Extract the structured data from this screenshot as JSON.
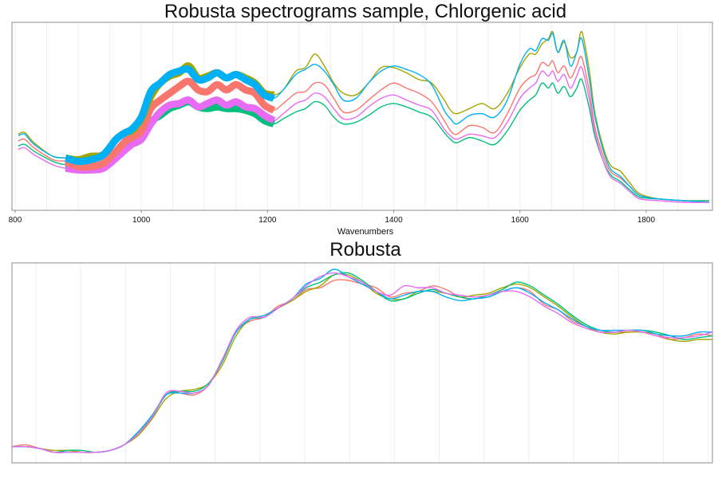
{
  "chart_data": [
    {
      "type": "line",
      "title": "Robusta spectrograms sample, Chlorgenic acid",
      "xlabel": "Wavenumbers",
      "ylabel": "",
      "xlim": [
        795,
        1905
      ],
      "ylim": [
        0,
        1
      ],
      "x_ticks": [
        "800",
        "1000",
        "1200",
        "1400",
        "1600",
        "1800"
      ],
      "highlight_range": [
        880,
        1215
      ],
      "grid": true,
      "legend": "none",
      "x": [
        805,
        815,
        830,
        860,
        880,
        900,
        920,
        940,
        960,
        975,
        985,
        1000,
        1015,
        1030,
        1045,
        1060,
        1075,
        1090,
        1105,
        1120,
        1135,
        1150,
        1165,
        1180,
        1195,
        1210,
        1225,
        1245,
        1260,
        1275,
        1290,
        1305,
        1320,
        1340,
        1360,
        1380,
        1400,
        1420,
        1440,
        1460,
        1480,
        1490,
        1500,
        1520,
        1540,
        1560,
        1580,
        1600,
        1615,
        1625,
        1635,
        1645,
        1652,
        1660,
        1670,
        1680,
        1690,
        1698,
        1710,
        1720,
        1740,
        1760,
        1775,
        1790,
        1820,
        1860,
        1900
      ],
      "series": [
        {
          "color": "#F8766D",
          "values": [
            0.36,
            0.37,
            0.32,
            0.25,
            0.24,
            0.21,
            0.21,
            0.23,
            0.3,
            0.36,
            0.38,
            0.42,
            0.55,
            0.6,
            0.64,
            0.68,
            0.71,
            0.66,
            0.65,
            0.69,
            0.66,
            0.69,
            0.66,
            0.64,
            0.57,
            0.54,
            0.58,
            0.64,
            0.65,
            0.7,
            0.69,
            0.61,
            0.53,
            0.54,
            0.6,
            0.66,
            0.7,
            0.67,
            0.64,
            0.59,
            0.48,
            0.42,
            0.4,
            0.45,
            0.44,
            0.41,
            0.52,
            0.67,
            0.73,
            0.75,
            0.82,
            0.8,
            0.83,
            0.76,
            0.8,
            0.73,
            0.8,
            0.85,
            0.65,
            0.42,
            0.2,
            0.14,
            0.09,
            0.04,
            0.02,
            0.01,
            0.01
          ]
        },
        {
          "color": "#A3A500",
          "values": [
            0.4,
            0.41,
            0.35,
            0.27,
            0.26,
            0.25,
            0.27,
            0.28,
            0.37,
            0.41,
            0.42,
            0.49,
            0.62,
            0.7,
            0.74,
            0.76,
            0.8,
            0.73,
            0.74,
            0.76,
            0.73,
            0.75,
            0.73,
            0.7,
            0.64,
            0.63,
            0.66,
            0.77,
            0.79,
            0.87,
            0.8,
            0.7,
            0.64,
            0.63,
            0.7,
            0.79,
            0.79,
            0.76,
            0.72,
            0.7,
            0.6,
            0.54,
            0.52,
            0.55,
            0.58,
            0.55,
            0.64,
            0.79,
            0.87,
            0.87,
            0.93,
            0.96,
            1.0,
            0.88,
            0.94,
            0.85,
            0.88,
            1.0,
            0.77,
            0.5,
            0.24,
            0.18,
            0.11,
            0.05,
            0.02,
            0.01,
            0.0
          ]
        },
        {
          "color": "#00BF7D",
          "values": [
            0.33,
            0.34,
            0.3,
            0.24,
            0.22,
            0.21,
            0.2,
            0.21,
            0.27,
            0.32,
            0.35,
            0.37,
            0.47,
            0.51,
            0.55,
            0.57,
            0.59,
            0.56,
            0.55,
            0.56,
            0.55,
            0.55,
            0.54,
            0.52,
            0.48,
            0.46,
            0.49,
            0.53,
            0.55,
            0.59,
            0.57,
            0.5,
            0.46,
            0.47,
            0.51,
            0.56,
            0.58,
            0.56,
            0.53,
            0.5,
            0.41,
            0.37,
            0.35,
            0.38,
            0.36,
            0.34,
            0.42,
            0.54,
            0.6,
            0.63,
            0.7,
            0.67,
            0.7,
            0.64,
            0.68,
            0.62,
            0.67,
            0.72,
            0.55,
            0.37,
            0.18,
            0.12,
            0.07,
            0.03,
            0.02,
            0.01,
            0.01
          ]
        },
        {
          "color": "#00B0F6",
          "values": [
            0.39,
            0.4,
            0.34,
            0.27,
            0.26,
            0.24,
            0.25,
            0.28,
            0.37,
            0.41,
            0.43,
            0.5,
            0.65,
            0.7,
            0.75,
            0.77,
            0.78,
            0.72,
            0.73,
            0.76,
            0.73,
            0.75,
            0.72,
            0.69,
            0.63,
            0.61,
            0.66,
            0.75,
            0.78,
            0.81,
            0.77,
            0.69,
            0.6,
            0.61,
            0.7,
            0.77,
            0.8,
            0.78,
            0.75,
            0.69,
            0.54,
            0.49,
            0.46,
            0.51,
            0.52,
            0.5,
            0.6,
            0.81,
            0.9,
            0.89,
            0.96,
            0.95,
            0.99,
            0.88,
            0.95,
            0.8,
            0.88,
            0.96,
            0.72,
            0.48,
            0.22,
            0.15,
            0.09,
            0.04,
            0.02,
            0.01,
            0.0
          ]
        },
        {
          "color": "#E76BF3",
          "values": [
            0.31,
            0.32,
            0.28,
            0.22,
            0.2,
            0.19,
            0.19,
            0.2,
            0.26,
            0.31,
            0.34,
            0.37,
            0.46,
            0.53,
            0.57,
            0.58,
            0.6,
            0.56,
            0.58,
            0.6,
            0.57,
            0.59,
            0.56,
            0.55,
            0.51,
            0.48,
            0.52,
            0.58,
            0.6,
            0.64,
            0.62,
            0.55,
            0.49,
            0.5,
            0.56,
            0.61,
            0.63,
            0.6,
            0.57,
            0.54,
            0.43,
            0.39,
            0.37,
            0.4,
            0.39,
            0.38,
            0.47,
            0.61,
            0.67,
            0.7,
            0.77,
            0.74,
            0.77,
            0.71,
            0.75,
            0.67,
            0.74,
            0.79,
            0.6,
            0.39,
            0.17,
            0.11,
            0.06,
            0.02,
            0.01,
            0.0,
            0.0
          ]
        }
      ]
    },
    {
      "type": "line",
      "title": "Robusta",
      "xlabel": "",
      "ylabel": "",
      "xlim": [
        0,
        100
      ],
      "ylim": [
        0,
        1
      ],
      "grid": true,
      "legend": "none",
      "x": [
        0,
        2,
        4,
        6,
        8,
        10,
        12,
        14,
        16,
        18,
        20,
        22,
        24,
        26,
        28,
        30,
        32,
        34,
        36,
        38,
        40,
        42,
        44,
        46,
        48,
        50,
        52,
        54,
        56,
        58,
        60,
        62,
        64,
        66,
        68,
        70,
        72,
        74,
        76,
        78,
        80,
        82,
        84,
        86,
        88,
        90,
        92,
        94,
        96,
        98,
        100
      ],
      "series": [
        {
          "color": "#F8766D",
          "values": [
            0.04,
            0.05,
            0.03,
            0.01,
            0.02,
            0.01,
            0.01,
            0.02,
            0.05,
            0.12,
            0.2,
            0.33,
            0.33,
            0.32,
            0.37,
            0.5,
            0.66,
            0.72,
            0.74,
            0.8,
            0.83,
            0.89,
            0.9,
            0.94,
            0.94,
            0.92,
            0.9,
            0.85,
            0.87,
            0.88,
            0.91,
            0.89,
            0.85,
            0.84,
            0.86,
            0.88,
            0.9,
            0.88,
            0.81,
            0.78,
            0.72,
            0.69,
            0.66,
            0.66,
            0.66,
            0.66,
            0.64,
            0.62,
            0.63,
            0.65,
            0.64
          ]
        },
        {
          "color": "#A3A500",
          "values": [
            0.04,
            0.04,
            0.03,
            0.02,
            0.02,
            0.01,
            0.01,
            0.02,
            0.05,
            0.1,
            0.19,
            0.3,
            0.34,
            0.35,
            0.38,
            0.48,
            0.64,
            0.73,
            0.75,
            0.79,
            0.83,
            0.88,
            0.91,
            0.97,
            0.97,
            0.93,
            0.87,
            0.84,
            0.84,
            0.88,
            0.88,
            0.87,
            0.85,
            0.86,
            0.87,
            0.9,
            0.92,
            0.9,
            0.85,
            0.8,
            0.74,
            0.69,
            0.66,
            0.65,
            0.66,
            0.66,
            0.65,
            0.62,
            0.61,
            0.62,
            0.62
          ]
        },
        {
          "color": "#00BF7D",
          "values": [
            0.04,
            0.04,
            0.03,
            0.01,
            0.02,
            0.02,
            0.01,
            0.02,
            0.05,
            0.11,
            0.2,
            0.32,
            0.34,
            0.34,
            0.38,
            0.5,
            0.66,
            0.73,
            0.74,
            0.79,
            0.84,
            0.9,
            0.93,
            0.97,
            0.98,
            0.94,
            0.88,
            0.83,
            0.84,
            0.87,
            0.89,
            0.87,
            0.85,
            0.84,
            0.86,
            0.89,
            0.93,
            0.91,
            0.86,
            0.81,
            0.75,
            0.7,
            0.67,
            0.66,
            0.67,
            0.67,
            0.66,
            0.64,
            0.62,
            0.63,
            0.64
          ]
        },
        {
          "color": "#00B0F6",
          "values": [
            0.04,
            0.04,
            0.03,
            0.01,
            0.01,
            0.01,
            0.01,
            0.02,
            0.05,
            0.12,
            0.21,
            0.32,
            0.33,
            0.33,
            0.37,
            0.51,
            0.66,
            0.73,
            0.75,
            0.79,
            0.84,
            0.92,
            0.95,
            1.0,
            0.96,
            0.92,
            0.88,
            0.84,
            0.86,
            0.88,
            0.88,
            0.85,
            0.83,
            0.84,
            0.85,
            0.88,
            0.9,
            0.87,
            0.82,
            0.78,
            0.73,
            0.69,
            0.67,
            0.67,
            0.67,
            0.67,
            0.65,
            0.64,
            0.64,
            0.66,
            0.66
          ]
        },
        {
          "color": "#E76BF3",
          "values": [
            0.04,
            0.04,
            0.03,
            0.01,
            0.01,
            0.01,
            0.01,
            0.02,
            0.05,
            0.11,
            0.2,
            0.33,
            0.34,
            0.33,
            0.37,
            0.51,
            0.67,
            0.74,
            0.74,
            0.79,
            0.84,
            0.91,
            0.96,
            0.98,
            0.96,
            0.93,
            0.88,
            0.86,
            0.91,
            0.9,
            0.9,
            0.87,
            0.86,
            0.85,
            0.86,
            0.88,
            0.88,
            0.85,
            0.8,
            0.76,
            0.71,
            0.68,
            0.66,
            0.66,
            0.67,
            0.66,
            0.64,
            0.63,
            0.63,
            0.64,
            0.66
          ]
        }
      ]
    }
  ]
}
